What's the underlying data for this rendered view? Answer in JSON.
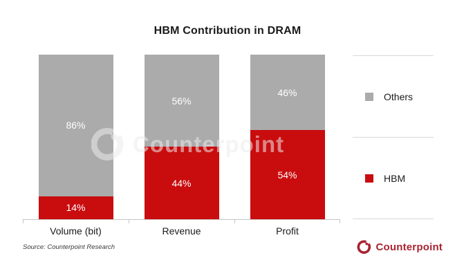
{
  "chart_data": {
    "type": "bar",
    "stacked": true,
    "title": "HBM Contribution in DRAM",
    "categories": [
      "Volume (bit)",
      "Revenue",
      "Profit"
    ],
    "series": [
      {
        "name": "Others",
        "color": "#ababab",
        "values": [
          86,
          56,
          46
        ]
      },
      {
        "name": "HBM",
        "color": "#c90c0e",
        "values": [
          14,
          44,
          54
        ]
      }
    ],
    "value_suffix": "%",
    "ylim": [
      0,
      100
    ],
    "grid": false,
    "legend_position": "right",
    "labels_in_bars": true
  },
  "legend": {
    "items": [
      {
        "label": "Others",
        "color": "#ababab"
      },
      {
        "label": "HBM",
        "color": "#c90c0e"
      }
    ]
  },
  "watermark": {
    "text": "Counterpoint"
  },
  "source": {
    "text": "Source: Counterpoint Research"
  },
  "branding": {
    "text": "Counterpoint",
    "color": "#a82332"
  },
  "colors": {
    "hbm": "#c90c0e",
    "others": "#ababab",
    "axis": "#c6c6c6",
    "legend_border": "#d8d8d8",
    "title_text": "#1a1a1a",
    "bar_label_text": "#ffffff",
    "brand": "#a82332"
  }
}
